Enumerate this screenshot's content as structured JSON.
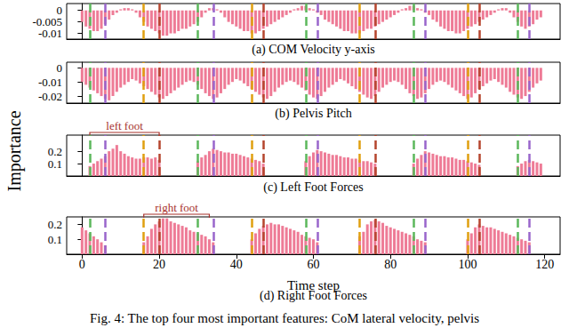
{
  "ylabel": "Importance",
  "caption": "Fig. 4: The top four most important features: CoM lateral velocity, pelvis",
  "chart_data": [
    {
      "type": "bar",
      "title": "(a) COM Velocity y-axis",
      "color": "#ee7b96",
      "grid": false,
      "tick_labels": "y",
      "xlim": [
        -4,
        124
      ],
      "xticks": [
        0,
        20,
        40,
        60,
        80,
        100,
        120
      ],
      "ylim": [
        -0.0125,
        0.003
      ],
      "yticks": [
        -0.01,
        -0.005,
        0
      ],
      "x": [
        0,
        1,
        2,
        3,
        4,
        5,
        6,
        7,
        8,
        9,
        10,
        11,
        12,
        13,
        14,
        15,
        16,
        17,
        18,
        19,
        20,
        21,
        22,
        23,
        24,
        25,
        26,
        27,
        28,
        29,
        30,
        31,
        32,
        33,
        34,
        35,
        36,
        37,
        38,
        39,
        40,
        41,
        42,
        43,
        44,
        45,
        46,
        47,
        48,
        49,
        50,
        51,
        52,
        53,
        54,
        55,
        56,
        57,
        58,
        59,
        60,
        61,
        62,
        63,
        64,
        65,
        66,
        67,
        68,
        69,
        70,
        71,
        72,
        73,
        74,
        75,
        76,
        77,
        78,
        79,
        80,
        81,
        82,
        83,
        84,
        85,
        86,
        87,
        88,
        89,
        90,
        91,
        92,
        93,
        94,
        95,
        96,
        97,
        98,
        99,
        100,
        101,
        102,
        103,
        104,
        105,
        106,
        107,
        108,
        109,
        110,
        111,
        112,
        113,
        114,
        115,
        116,
        117,
        118,
        119
      ],
      "values": [
        -0.005,
        -0.007,
        -0.008,
        -0.009,
        -0.009,
        -0.008,
        -0.006,
        -0.004,
        -0.002,
        -0.001,
        0.0005,
        0.001,
        0.001,
        0.0005,
        -0.001,
        -0.003,
        -0.005,
        -0.007,
        -0.008,
        -0.009,
        -0.01,
        -0.011,
        -0.011,
        -0.01,
        -0.01,
        -0.009,
        -0.008,
        -0.008,
        -0.007,
        -0.006,
        -0.005,
        -0.003,
        -0.001,
        0.001,
        0.001,
        0.0005,
        -0.001,
        -0.003,
        -0.005,
        -0.006,
        -0.007,
        -0.008,
        -0.009,
        -0.009,
        -0.01,
        -0.01,
        -0.009,
        -0.008,
        -0.007,
        -0.006,
        -0.005,
        -0.004,
        -0.003,
        -0.002,
        -0.001,
        0.0005,
        0.001,
        0.002,
        0.002,
        0.001,
        0.0005,
        -0.001,
        -0.002,
        -0.004,
        -0.005,
        -0.006,
        -0.007,
        -0.008,
        -0.009,
        -0.009,
        -0.01,
        -0.01,
        -0.01,
        -0.009,
        -0.008,
        -0.008,
        -0.007,
        -0.006,
        -0.005,
        -0.004,
        -0.003,
        -0.002,
        -0.001,
        0.0005,
        0.001,
        0.002,
        0.002,
        0.001,
        0.0005,
        -0.001,
        -0.002,
        -0.004,
        -0.005,
        -0.007,
        -0.008,
        -0.009,
        -0.009,
        -0.01,
        -0.01,
        -0.009,
        -0.008,
        -0.007,
        -0.006,
        -0.005,
        -0.004,
        -0.003,
        -0.002,
        -0.001,
        0.0005,
        0.001,
        0.001,
        -0.001,
        -0.003,
        -0.005,
        -0.007,
        -0.008,
        -0.007,
        -0.006,
        -0.004,
        -0.003
      ],
      "vlines": [
        {
          "color": "#5cb85c",
          "x": [
            2,
            30,
            58,
            86,
            113
          ]
        },
        {
          "color": "#e0a010",
          "x": [
            16,
            44,
            72,
            100
          ]
        },
        {
          "color": "#b5452e",
          "x": [
            20,
            47,
            76,
            103
          ]
        },
        {
          "color": "#9966cc",
          "x": [
            6,
            34,
            61,
            89,
            116
          ]
        }
      ]
    },
    {
      "type": "bar",
      "title": "(b) Pelvis Pitch",
      "color": "#ee7b96",
      "grid": false,
      "tick_labels": "y",
      "xlim": [
        -4,
        124
      ],
      "xticks": [
        0,
        20,
        40,
        60,
        80,
        100,
        120
      ],
      "ylim": [
        -0.025,
        0.004
      ],
      "yticks": [
        -0.02,
        -0.01,
        0
      ],
      "x": [
        0,
        1,
        2,
        3,
        4,
        5,
        6,
        7,
        8,
        9,
        10,
        11,
        12,
        13,
        14,
        15,
        16,
        17,
        18,
        19,
        20,
        21,
        22,
        23,
        24,
        25,
        26,
        27,
        28,
        29,
        30,
        31,
        32,
        33,
        34,
        35,
        36,
        37,
        38,
        39,
        40,
        41,
        42,
        43,
        44,
        45,
        46,
        47,
        48,
        49,
        50,
        51,
        52,
        53,
        54,
        55,
        56,
        57,
        58,
        59,
        60,
        61,
        62,
        63,
        64,
        65,
        66,
        67,
        68,
        69,
        70,
        71,
        72,
        73,
        74,
        75,
        76,
        77,
        78,
        79,
        80,
        81,
        82,
        83,
        84,
        85,
        86,
        87,
        88,
        89,
        90,
        91,
        92,
        93,
        94,
        95,
        96,
        97,
        98,
        99,
        100,
        101,
        102,
        103,
        104,
        105,
        106,
        107,
        108,
        109,
        110,
        111,
        112,
        113,
        114,
        115,
        116,
        117,
        118,
        119
      ],
      "values": [
        -0.01,
        -0.012,
        -0.014,
        -0.016,
        -0.018,
        -0.02,
        -0.022,
        -0.023,
        -0.02,
        -0.017,
        -0.014,
        -0.012,
        -0.01,
        -0.008,
        -0.009,
        -0.011,
        -0.013,
        -0.015,
        -0.017,
        -0.019,
        -0.021,
        -0.022,
        -0.02,
        -0.018,
        -0.016,
        -0.014,
        -0.012,
        -0.01,
        -0.009,
        -0.01,
        -0.012,
        -0.015,
        -0.018,
        -0.02,
        -0.022,
        -0.021,
        -0.018,
        -0.015,
        -0.012,
        -0.01,
        -0.008,
        -0.009,
        -0.011,
        -0.013,
        -0.015,
        -0.017,
        -0.019,
        -0.021,
        -0.022,
        -0.02,
        -0.017,
        -0.014,
        -0.012,
        -0.01,
        -0.009,
        -0.01,
        -0.012,
        -0.014,
        -0.016,
        -0.019,
        -0.021,
        -0.022,
        -0.02,
        -0.017,
        -0.014,
        -0.012,
        -0.01,
        -0.008,
        -0.009,
        -0.011,
        -0.013,
        -0.015,
        -0.017,
        -0.019,
        -0.021,
        -0.022,
        -0.02,
        -0.017,
        -0.014,
        -0.012,
        -0.01,
        -0.009,
        -0.01,
        -0.012,
        -0.015,
        -0.018,
        -0.02,
        -0.022,
        -0.021,
        -0.018,
        -0.015,
        -0.012,
        -0.01,
        -0.009,
        -0.01,
        -0.012,
        -0.014,
        -0.016,
        -0.018,
        -0.02,
        -0.022,
        -0.021,
        -0.018,
        -0.015,
        -0.013,
        -0.011,
        -0.009,
        -0.008,
        -0.01,
        -0.012,
        -0.014,
        -0.017,
        -0.019,
        -0.021,
        -0.022,
        -0.02,
        -0.017,
        -0.014,
        -0.011,
        -0.009
      ],
      "vlines": [
        {
          "color": "#5cb85c",
          "x": [
            2,
            30,
            58,
            86,
            113
          ]
        },
        {
          "color": "#e0a010",
          "x": [
            16,
            44,
            72,
            100
          ]
        },
        {
          "color": "#b5452e",
          "x": [
            20,
            47,
            76,
            103
          ]
        },
        {
          "color": "#9966cc",
          "x": [
            6,
            34,
            61,
            89,
            116
          ]
        }
      ]
    },
    {
      "type": "bar",
      "title": "(c) Left Foot Forces",
      "color": "#ee7b96",
      "grid": false,
      "tick_labels": "y",
      "xlim": [
        -4,
        124
      ],
      "xticks": [
        0,
        20,
        40,
        60,
        80,
        100,
        120
      ],
      "ylim": [
        0,
        0.33
      ],
      "yticks": [
        0.1,
        0.2
      ],
      "x": [
        0,
        1,
        2,
        3,
        4,
        5,
        6,
        7,
        8,
        9,
        10,
        11,
        12,
        13,
        14,
        15,
        16,
        17,
        18,
        19,
        20,
        21,
        22,
        23,
        24,
        25,
        26,
        27,
        28,
        29,
        30,
        31,
        32,
        33,
        34,
        35,
        36,
        37,
        38,
        39,
        40,
        41,
        42,
        43,
        44,
        45,
        46,
        47,
        48,
        49,
        50,
        51,
        52,
        53,
        54,
        55,
        56,
        57,
        58,
        59,
        60,
        61,
        62,
        63,
        64,
        65,
        66,
        67,
        68,
        69,
        70,
        71,
        72,
        73,
        74,
        75,
        76,
        77,
        78,
        79,
        80,
        81,
        82,
        83,
        84,
        85,
        86,
        87,
        88,
        89,
        90,
        91,
        92,
        93,
        94,
        95,
        96,
        97,
        98,
        99,
        100,
        101,
        102,
        103,
        104,
        105,
        106,
        107,
        108,
        109,
        110,
        111,
        112,
        113,
        114,
        115,
        116,
        117,
        118,
        119
      ],
      "values": [
        0,
        0,
        0.08,
        0.1,
        0.12,
        0.14,
        0.16,
        0.2,
        0.22,
        0.25,
        0.2,
        0.18,
        0.16,
        0.15,
        0.14,
        0.14,
        0.15,
        0.15,
        0.14,
        0.15,
        0.13,
        0,
        0,
        0,
        0,
        0,
        0,
        0,
        0,
        0,
        0.12,
        0.15,
        0.17,
        0.2,
        0.22,
        0.21,
        0.2,
        0.19,
        0.19,
        0.18,
        0.18,
        0.17,
        0.16,
        0.15,
        0.14,
        0.13,
        0.12,
        0.1,
        0,
        0,
        0,
        0,
        0,
        0,
        0,
        0,
        0,
        0,
        0.12,
        0.16,
        0.19,
        0.21,
        0.2,
        0.19,
        0.18,
        0.17,
        0.17,
        0.16,
        0.15,
        0.15,
        0.14,
        0.14,
        0.13,
        0.12,
        0.12,
        0.11,
        0.1,
        0,
        0,
        0,
        0,
        0,
        0,
        0,
        0,
        0,
        0.1,
        0.14,
        0.17,
        0.2,
        0.19,
        0.18,
        0.17,
        0.16,
        0.16,
        0.15,
        0.15,
        0.14,
        0.13,
        0.13,
        0.12,
        0.11,
        0.1,
        0.09,
        0,
        0,
        0,
        0,
        0,
        0,
        0,
        0,
        0,
        0.08,
        0.1,
        0.12,
        0.13,
        0.12,
        0.11,
        0.1
      ],
      "vlines": [
        {
          "color": "#5cb85c",
          "x": [
            2,
            30,
            58,
            86,
            113
          ]
        },
        {
          "color": "#e0a010",
          "x": [
            16,
            44,
            72,
            100
          ]
        },
        {
          "color": "#b5452e",
          "x": [
            20,
            47,
            76,
            103
          ]
        },
        {
          "color": "#9966cc",
          "x": [
            6,
            34,
            61,
            89,
            116
          ]
        }
      ],
      "annotations": [
        {
          "text": "left foot",
          "x": [
            2,
            20
          ],
          "color": "#a8322d"
        }
      ]
    },
    {
      "type": "bar",
      "title": "(d) Right Foot Forces",
      "xlabel": "Time step",
      "color": "#ee7b96",
      "grid": false,
      "xlim": [
        -4,
        124
      ],
      "xticks": [
        0,
        20,
        40,
        60,
        80,
        100,
        120
      ],
      "ylim": [
        0,
        0.25
      ],
      "yticks": [
        0.1,
        0.2
      ],
      "x": [
        0,
        1,
        2,
        3,
        4,
        5,
        6,
        7,
        8,
        9,
        10,
        11,
        12,
        13,
        14,
        15,
        16,
        17,
        18,
        19,
        20,
        21,
        22,
        23,
        24,
        25,
        26,
        27,
        28,
        29,
        30,
        31,
        32,
        33,
        34,
        35,
        36,
        37,
        38,
        39,
        40,
        41,
        42,
        43,
        44,
        45,
        46,
        47,
        48,
        49,
        50,
        51,
        52,
        53,
        54,
        55,
        56,
        57,
        58,
        59,
        60,
        61,
        62,
        63,
        64,
        65,
        66,
        67,
        68,
        69,
        70,
        71,
        72,
        73,
        74,
        75,
        76,
        77,
        78,
        79,
        80,
        81,
        82,
        83,
        84,
        85,
        86,
        87,
        88,
        89,
        90,
        91,
        92,
        93,
        94,
        95,
        96,
        97,
        98,
        99,
        100,
        101,
        102,
        103,
        104,
        105,
        106,
        107,
        108,
        109,
        110,
        111,
        112,
        113,
        114,
        115,
        116,
        117,
        118,
        119
      ],
      "values": [
        0.18,
        0.16,
        0.14,
        0.12,
        0.1,
        0.08,
        0.06,
        0,
        0,
        0,
        0,
        0,
        0,
        0,
        0,
        0,
        0.08,
        0.12,
        0.17,
        0.2,
        0.22,
        0.24,
        0.24,
        0.22,
        0.21,
        0.2,
        0.19,
        0.18,
        0.16,
        0.15,
        0.14,
        0.13,
        0.12,
        0.1,
        0.08,
        0,
        0,
        0,
        0,
        0,
        0,
        0,
        0,
        0,
        0.1,
        0.14,
        0.17,
        0.19,
        0.2,
        0.21,
        0.2,
        0.2,
        0.19,
        0.18,
        0.17,
        0.16,
        0.15,
        0.13,
        0.12,
        0.11,
        0.1,
        0.08,
        0,
        0,
        0,
        0,
        0,
        0,
        0,
        0,
        0,
        0,
        0.12,
        0.15,
        0.2,
        0.22,
        0.23,
        0.22,
        0.21,
        0.19,
        0.18,
        0.17,
        0.16,
        0.15,
        0.14,
        0.13,
        0.12,
        0.1,
        0.09,
        0.08,
        0,
        0,
        0,
        0,
        0,
        0,
        0,
        0,
        0,
        0,
        0.1,
        0.14,
        0.18,
        0.2,
        0.19,
        0.18,
        0.18,
        0.17,
        0.16,
        0.15,
        0.14,
        0.13,
        0.12,
        0.11,
        0.1,
        0.09,
        0.08,
        0,
        0,
        0
      ],
      "vlines": [
        {
          "color": "#5cb85c",
          "x": [
            2,
            30,
            58,
            86,
            113
          ]
        },
        {
          "color": "#e0a010",
          "x": [
            16,
            44,
            72,
            100
          ]
        },
        {
          "color": "#b5452e",
          "x": [
            20,
            47,
            76,
            103
          ]
        },
        {
          "color": "#9966cc",
          "x": [
            6,
            34,
            61,
            89,
            116
          ]
        }
      ],
      "annotations": [
        {
          "text": "right foot",
          "x": [
            16,
            33
          ],
          "color": "#a8322d"
        }
      ]
    }
  ]
}
